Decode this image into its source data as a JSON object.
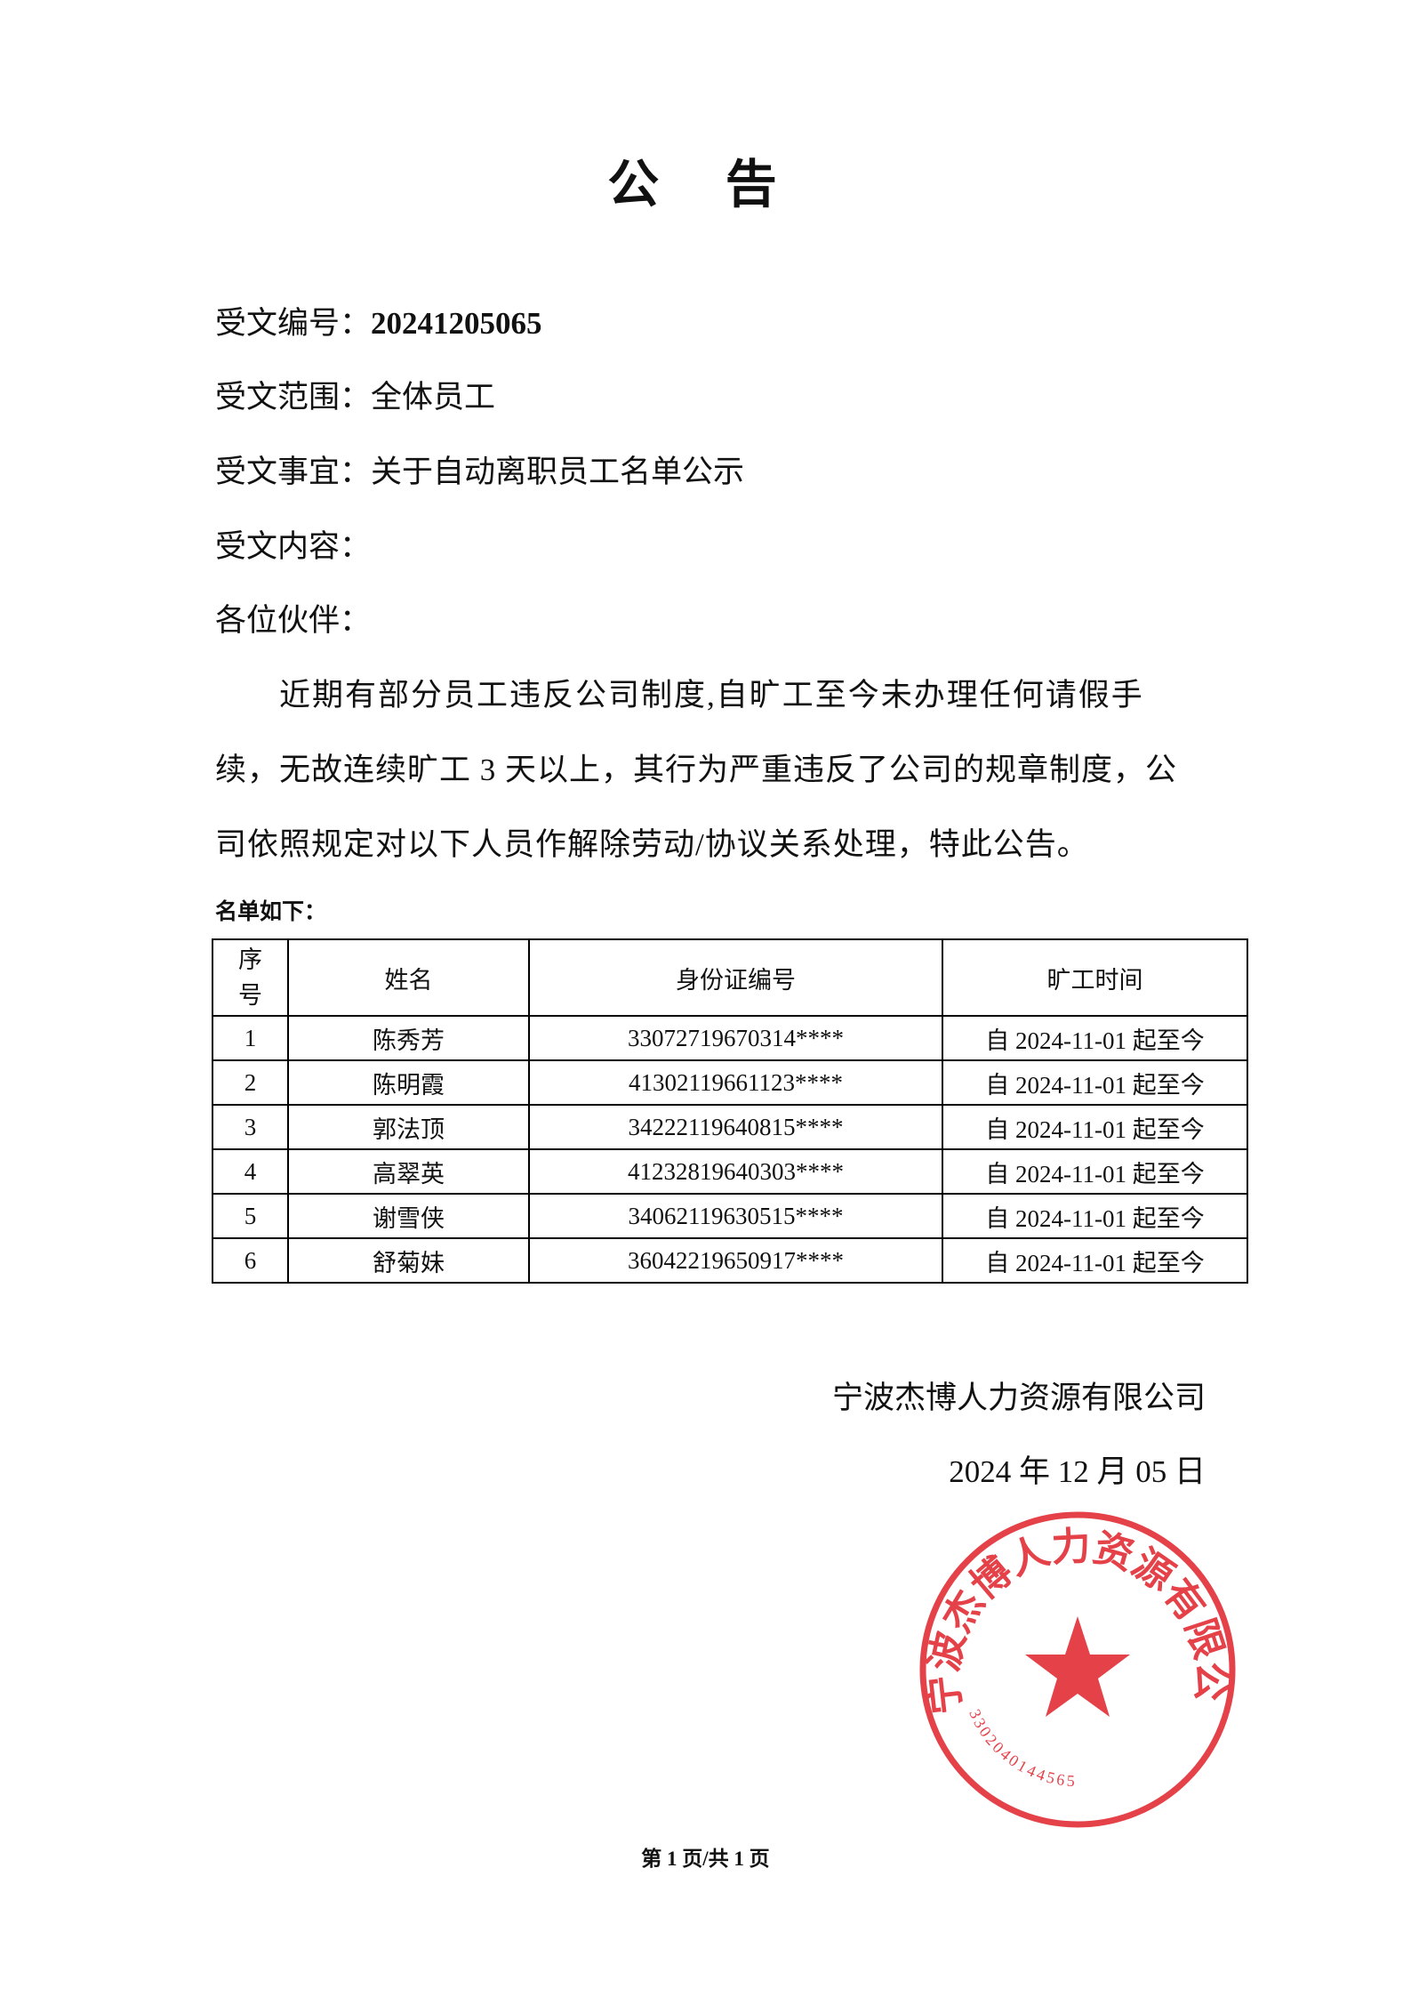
{
  "title": "公 告",
  "fields": [
    {
      "label": "受文编号：",
      "value": "20241205065"
    },
    {
      "label": "受文范围：",
      "value": "全体员工"
    },
    {
      "label": "受文事宜：",
      "value": "关于自动离职员工名单公示"
    },
    {
      "label": "受文内容：",
      "value": ""
    }
  ],
  "greeting": "各位伙伴：",
  "body_lines": [
    "近期有部分员工违反公司制度,自旷工至今未办理任何请假手",
    "续，无故连续旷工 3 天以上，其行为严重违反了公司的规章制度，公",
    "司依照规定对以下人员作解除劳动/协议关系处理，特此公告。"
  ],
  "list_label": "名单如下：",
  "table": {
    "headers": [
      "序号",
      "姓名",
      "身份证编号",
      "旷工时间"
    ],
    "rows": [
      [
        "1",
        "陈秀芳",
        "33072719670314****",
        "自 2024-11-01 起至今"
      ],
      [
        "2",
        "陈明霞",
        "41302119661123****",
        "自 2024-11-01 起至今"
      ],
      [
        "3",
        "郭法顶",
        "34222119640815****",
        "自 2024-11-01 起至今"
      ],
      [
        "4",
        "高翠英",
        "41232819640303****",
        "自 2024-11-01 起至今"
      ],
      [
        "5",
        "谢雪侠",
        "34062119630515****",
        "自 2024-11-01 起至今"
      ],
      [
        "6",
        "舒菊妹",
        "36042219650917****",
        "自 2024-11-01 起至今"
      ]
    ]
  },
  "signature": {
    "company": "宁波杰博人力资源有限公司",
    "date": "2024 年 12 月 05 日"
  },
  "stamp": {
    "text": "宁波杰博人力资源有限公司",
    "number": "3302040144565",
    "color": "#e0202a"
  },
  "footer": "第 1 页/共 1 页"
}
